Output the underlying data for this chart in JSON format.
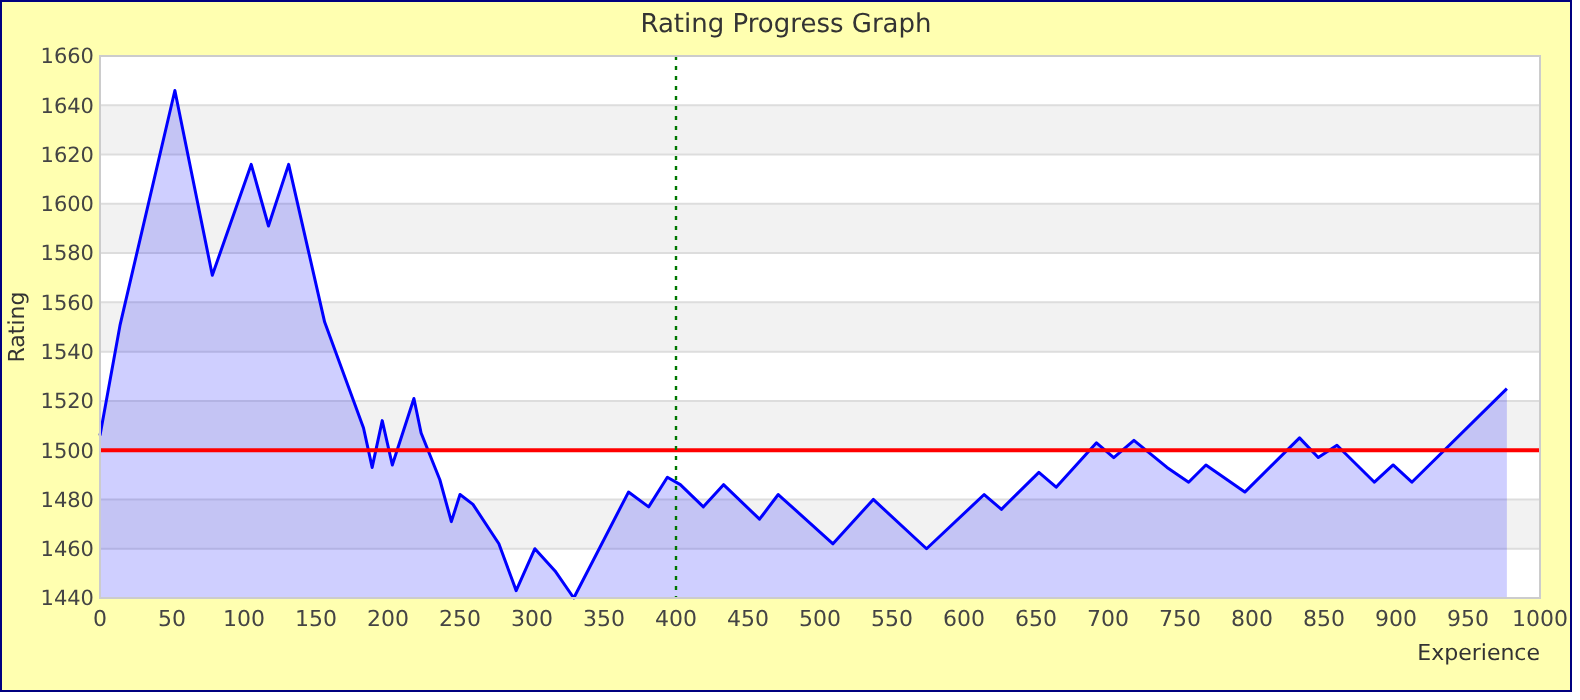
{
  "chart_data": {
    "type": "area",
    "title": "Rating Progress Graph",
    "xlabel": "Experience",
    "ylabel": "Rating",
    "x": [
      0,
      14,
      52,
      78,
      105,
      117,
      131,
      156,
      183,
      189,
      196,
      203,
      218,
      223,
      236,
      244,
      250,
      259,
      277,
      289,
      302,
      316,
      329,
      367,
      381,
      394,
      403,
      419,
      433,
      458,
      471,
      509,
      537,
      574,
      614,
      626,
      652,
      664,
      692,
      704,
      718,
      741,
      756,
      768,
      795,
      833,
      846,
      859,
      885,
      898,
      911,
      977
    ],
    "series": [
      {
        "color": "#0000ff",
        "values": [
          1506,
          1551,
          1646,
          1571,
          1616,
          1591,
          1616,
          1552,
          1509,
          1493,
          1512,
          1494,
          1521,
          1507,
          1488,
          1471,
          1482,
          1478,
          1462,
          1443,
          1460,
          1451,
          1440,
          1483,
          1477,
          1489,
          1486,
          1477,
          1486,
          1472,
          1482,
          1462,
          1480,
          1460,
          1482,
          1476,
          1491,
          1485,
          1503,
          1497,
          1504,
          1493,
          1487,
          1494,
          1483,
          1505,
          1497,
          1502,
          1487,
          1494,
          1487,
          1525
        ]
      }
    ],
    "xlim": [
      0,
      1000
    ],
    "xticks": [
      0,
      50,
      100,
      150,
      200,
      250,
      300,
      350,
      400,
      450,
      500,
      550,
      600,
      650,
      700,
      750,
      800,
      850,
      900,
      950,
      1000
    ],
    "ylim": [
      1440,
      1660
    ],
    "yticks": [
      1440,
      1460,
      1480,
      1500,
      1520,
      1540,
      1560,
      1580,
      1600,
      1620,
      1640,
      1660
    ],
    "grid": "y",
    "ref_lines": [
      {
        "axis": "y",
        "value": 1500,
        "color": "#ff0000",
        "line_style": "solid"
      },
      {
        "axis": "x",
        "value": 400,
        "color": "#007700",
        "line_style": "dotted"
      }
    ]
  }
}
